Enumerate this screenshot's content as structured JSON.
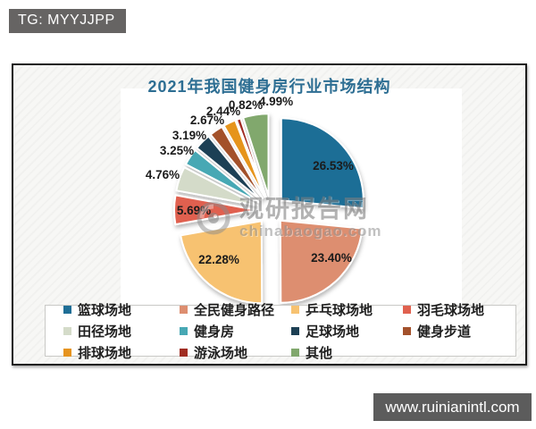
{
  "badges": {
    "tg": "TG: MYYJJPP",
    "site": "www.ruinianintl.com"
  },
  "watermark": {
    "brand": "观研报告网",
    "domain": "chinabaogao.com"
  },
  "chart_data": {
    "type": "pie",
    "title": "2021年我国健身房行业市场结构",
    "exploded": true,
    "legend_position": "bottom",
    "value_suffix": "%",
    "series": [
      {
        "label": "篮球场地",
        "value": 26.53,
        "color": "#1e6e96"
      },
      {
        "label": "全民健身路径",
        "value": 23.4,
        "color": "#dd8e70"
      },
      {
        "label": "乒乓球场地",
        "value": 22.28,
        "color": "#f7c271"
      },
      {
        "label": "羽毛球场地",
        "value": 5.69,
        "color": "#e0614f"
      },
      {
        "label": "田径场地",
        "value": 4.76,
        "color": "#d4dbc9"
      },
      {
        "label": "健身房",
        "value": 3.25,
        "color": "#47a8b4"
      },
      {
        "label": "足球场地",
        "value": 3.19,
        "color": "#1d4054"
      },
      {
        "label": "健身步道",
        "value": 2.67,
        "color": "#a3512b"
      },
      {
        "label": "排球场地",
        "value": 2.44,
        "color": "#e6941f"
      },
      {
        "label": "游泳场地",
        "value": 0.82,
        "color": "#a02c21"
      },
      {
        "label": "其他",
        "value": 4.99,
        "color": "#81a86d"
      }
    ]
  }
}
